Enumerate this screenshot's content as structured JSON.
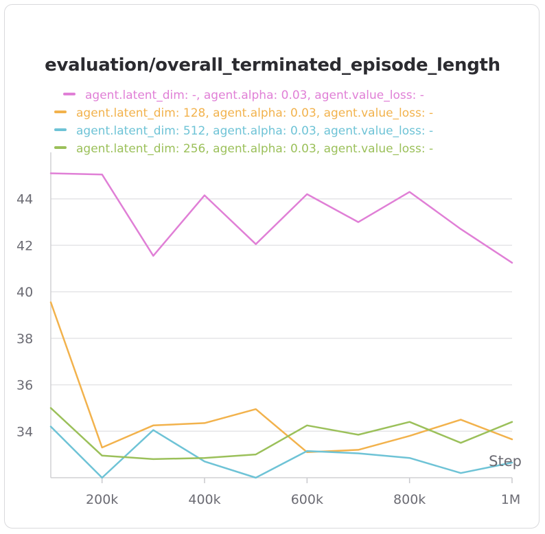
{
  "chart_data": {
    "type": "line",
    "title": "evaluation/overall_terminated_episode_length",
    "xlabel": "Step",
    "ylabel": "",
    "x": [
      100000,
      200000,
      300000,
      400000,
      500000,
      600000,
      700000,
      800000,
      900000,
      1000000
    ],
    "xlim": [
      100000,
      1000000
    ],
    "ylim": [
      32,
      46
    ],
    "x_ticks": [
      200000,
      400000,
      600000,
      800000,
      1000000
    ],
    "x_tick_labels": [
      "200k",
      "400k",
      "600k",
      "800k",
      "1M"
    ],
    "y_ticks": [
      34,
      36,
      38,
      40,
      42,
      44
    ],
    "y_tick_labels": [
      "34",
      "36",
      "38",
      "40",
      "42",
      "44"
    ],
    "grid": true,
    "legend_placement": "top",
    "series": [
      {
        "name": "agent.latent_dim: -, agent.alpha: 0.03, agent.value_loss: -",
        "color": "#e07fd6",
        "values": [
          45.1,
          45.05,
          41.55,
          44.15,
          42.05,
          44.2,
          43.0,
          44.3,
          42.7,
          41.25
        ]
      },
      {
        "name": "agent.latent_dim: 128, agent.alpha: 0.03, agent.value_loss: -",
        "color": "#f2b24c",
        "values": [
          39.55,
          33.3,
          34.25,
          34.35,
          34.95,
          33.1,
          33.2,
          33.8,
          34.5,
          33.65
        ]
      },
      {
        "name": "agent.latent_dim: 512, agent.alpha: 0.03, agent.value_loss: -",
        "color": "#6ec3d6",
        "values": [
          34.2,
          32.0,
          34.05,
          32.7,
          32.0,
          33.15,
          33.05,
          32.85,
          32.2,
          32.65
        ]
      },
      {
        "name": "agent.latent_dim: 256, agent.alpha: 0.03, agent.value_loss: -",
        "color": "#9bc05a",
        "values": [
          35.0,
          32.95,
          32.8,
          32.85,
          33.0,
          34.25,
          33.85,
          34.4,
          33.5,
          34.4
        ]
      }
    ]
  }
}
